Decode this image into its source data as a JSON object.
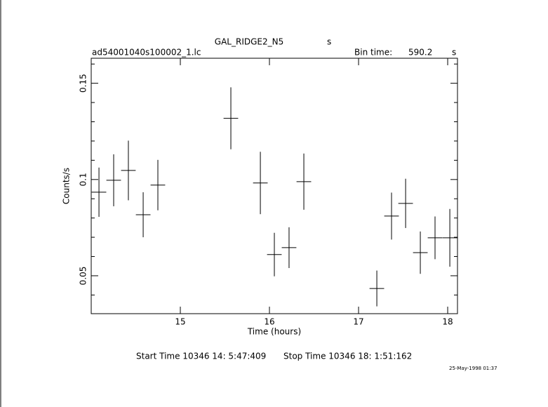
{
  "chart_data": {
    "type": "errorbar",
    "title": "GAL_RIDGE2_N5",
    "title_unit": "s",
    "file_name": "ad54001040s100002_1.lc",
    "bin_time_label": "Bin time:",
    "bin_time": 590.2,
    "bin_time_unit": "s",
    "x_label": "Time (hours)",
    "y_label": "Counts/s",
    "start_time": "Start Time 10346 14: 5:47:409",
    "stop_time": "Stop Time 10346 18: 1:51:162",
    "date": "25-May-1998 01:37",
    "color": "#000000",
    "xlim": [
      14.0,
      18.11
    ],
    "ylim": [
      0.0303,
      0.163
    ],
    "xticks": [
      15,
      16,
      17,
      18
    ],
    "yticks": [
      0.05,
      0.1,
      0.15
    ],
    "y_minor_ticks": [
      0.04,
      0.06,
      0.07,
      0.08,
      0.09,
      0.11,
      0.12,
      0.13,
      0.14,
      0.16
    ],
    "x": [
      14.087,
      14.252,
      14.417,
      14.583,
      14.748,
      15.567,
      15.898,
      16.055,
      16.22,
      16.386,
      17.205,
      17.37,
      17.528,
      17.693,
      17.858,
      18.024
    ],
    "values": [
      0.0934,
      0.0996,
      0.1047,
      0.0817,
      0.0971,
      0.1318,
      0.0982,
      0.061,
      0.0646,
      0.0989,
      0.0434,
      0.081,
      0.0876,
      0.062,
      0.0697,
      0.0697
    ],
    "xerr": [
      0.082,
      0.082,
      0.082,
      0.082,
      0.082,
      0.082,
      0.082,
      0.082,
      0.082,
      0.082,
      0.082,
      0.082,
      0.082,
      0.082,
      0.082,
      0.082
    ],
    "yerr": [
      0.0128,
      0.0135,
      0.0155,
      0.0117,
      0.0131,
      0.0161,
      0.0162,
      0.0113,
      0.0106,
      0.0146,
      0.0093,
      0.0122,
      0.0128,
      0.011,
      0.0111,
      0.015
    ]
  }
}
